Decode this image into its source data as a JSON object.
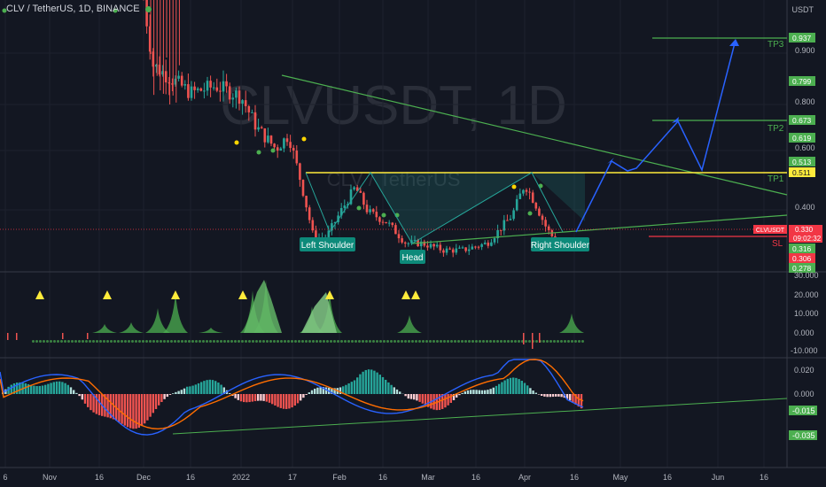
{
  "header": {
    "symbol_line": "CLV / TetherUS, 1D, BINANCE"
  },
  "watermark": {
    "big": "CLVUSDT, 1D",
    "small": "CLV / TetherUS"
  },
  "price_axis": {
    "unit": "USDT",
    "ticks": [
      "0.900",
      "0.800",
      "0.600",
      "0.400"
    ],
    "levels": [
      {
        "label": "0.937",
        "color": "#4caf50"
      },
      {
        "label": "0.799",
        "color": "#4caf50"
      },
      {
        "label": "0.673",
        "color": "#4caf50"
      },
      {
        "label": "0.619",
        "color": "#4caf50"
      },
      {
        "label": "0.513",
        "color": "#4caf50"
      },
      {
        "label": "0.511",
        "color": "#ffeb3b"
      },
      {
        "label": "0.316",
        "color": "#4caf50"
      },
      {
        "label": "0.306",
        "color": "#f23645"
      },
      {
        "label": "0.278",
        "color": "#4caf50"
      }
    ],
    "current": {
      "symbol": "CLVUSDT",
      "price": "0.330",
      "countdown": "09:02:32"
    }
  },
  "indicator1_axis": [
    "30.000",
    "20.000",
    "10.000",
    "0.000",
    "-10.000"
  ],
  "indicator2_axis": [
    "0.020",
    "0.000"
  ],
  "indicator2_tags": [
    "-0.015",
    "-0.035"
  ],
  "time_axis": [
    "6",
    "Nov",
    "16",
    "Dec",
    "16",
    "2022",
    "17",
    "Feb",
    "16",
    "Mar",
    "16",
    "Apr",
    "16",
    "May",
    "16",
    "Jun",
    "16"
  ],
  "annotations": {
    "left_shoulder": "Left Shoulder",
    "head": "Head",
    "right_shoulder": "Right Shoulder",
    "tp1": "TP1",
    "tp2": "TP2",
    "tp3": "TP3",
    "sl": "SL"
  },
  "colors": {
    "up": "#26a69a",
    "down": "#ef5350",
    "trend": "#4caf50",
    "neckline": "#ffeb3b",
    "projection": "#2962ff",
    "macd": "#2962ff",
    "signal": "#ff6d00"
  },
  "chart_data": {
    "type": "line",
    "title": "CLVUSDT, 1D",
    "series": [
      {
        "name": "CLVUSDT",
        "points": [
          [
            "Dec 1",
            1.05
          ],
          [
            "Dec 4",
            0.86
          ],
          [
            "Dec 10",
            0.82
          ],
          [
            "Dec 16",
            0.78
          ],
          [
            "Dec 24",
            0.8
          ],
          [
            "Jan 1",
            0.77
          ],
          [
            "Jan 6",
            0.68
          ],
          [
            "Jan 12",
            0.62
          ],
          [
            "Jan 16",
            0.66
          ],
          [
            "Jan 20",
            0.52
          ],
          [
            "Jan 24",
            0.36
          ],
          [
            "Jan 28",
            0.37
          ],
          [
            "Feb 2",
            0.45
          ],
          [
            "Feb 6",
            0.51
          ],
          [
            "Feb 10",
            0.44
          ],
          [
            "Feb 16",
            0.41
          ],
          [
            "Feb 22",
            0.35
          ],
          [
            "Feb 27",
            0.35
          ],
          [
            "Mar 6",
            0.33
          ],
          [
            "Mar 12",
            0.33
          ],
          [
            "Mar 20",
            0.35
          ],
          [
            "Mar 28",
            0.43
          ],
          [
            "Apr 1",
            0.52
          ],
          [
            "Apr 4",
            0.47
          ],
          [
            "Apr 8",
            0.39
          ],
          [
            "Apr 12",
            0.34
          ],
          [
            "Apr 16",
            0.36
          ],
          [
            "Apr 19",
            0.33
          ]
        ]
      }
    ],
    "pattern": {
      "left_shoulder": 0.36,
      "head": 0.3,
      "right_shoulder": 0.33,
      "neckline": 0.511
    },
    "targets": {
      "TP1": 0.511,
      "TP2": 0.673,
      "TP3": 0.937,
      "SL": 0.306
    },
    "y_range": [
      0.26,
      1.1
    ]
  }
}
